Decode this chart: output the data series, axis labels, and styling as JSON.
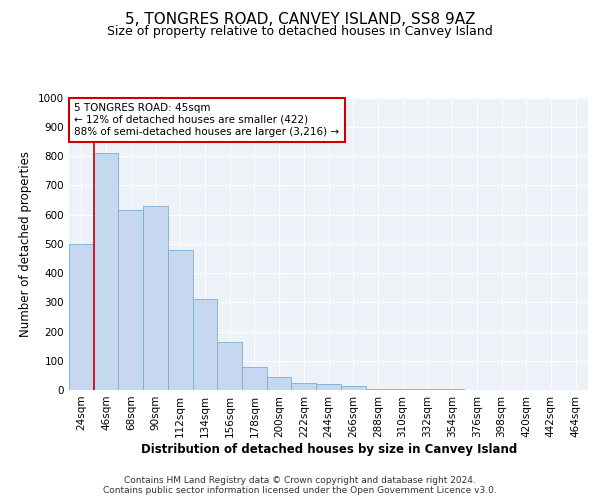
{
  "title": "5, TONGRES ROAD, CANVEY ISLAND, SS8 9AZ",
  "subtitle": "Size of property relative to detached houses in Canvey Island",
  "xlabel": "Distribution of detached houses by size in Canvey Island",
  "ylabel": "Number of detached properties",
  "footer_line1": "Contains HM Land Registry data © Crown copyright and database right 2024.",
  "footer_line2": "Contains public sector information licensed under the Open Government Licence v3.0.",
  "annotation_line1": "5 TONGRES ROAD: 45sqm",
  "annotation_line2": "← 12% of detached houses are smaller (422)",
  "annotation_line3": "88% of semi-detached houses are larger (3,216) →",
  "bar_values": [
    500,
    810,
    615,
    630,
    480,
    310,
    163,
    78,
    45,
    25,
    20,
    12,
    5,
    4,
    3,
    2,
    1,
    1,
    1,
    1,
    1
  ],
  "categories": [
    "24sqm",
    "46sqm",
    "68sqm",
    "90sqm",
    "112sqm",
    "134sqm",
    "156sqm",
    "178sqm",
    "200sqm",
    "222sqm",
    "244sqm",
    "266sqm",
    "288sqm",
    "310sqm",
    "332sqm",
    "354sqm",
    "376sqm",
    "398sqm",
    "420sqm",
    "442sqm",
    "464sqm"
  ],
  "bar_color": "#c5d8f0",
  "bar_edge_color": "#7bafd4",
  "marker_color": "#cc0000",
  "ylim": [
    0,
    1000
  ],
  "yticks": [
    0,
    100,
    200,
    300,
    400,
    500,
    600,
    700,
    800,
    900,
    1000
  ],
  "bg_color": "#edf2f9",
  "grid_color": "#ffffff",
  "title_fontsize": 11,
  "subtitle_fontsize": 9,
  "axis_label_fontsize": 8.5,
  "tick_fontsize": 7.5,
  "annotation_fontsize": 7.5,
  "footer_fontsize": 6.5,
  "red_line_x": 0.5
}
